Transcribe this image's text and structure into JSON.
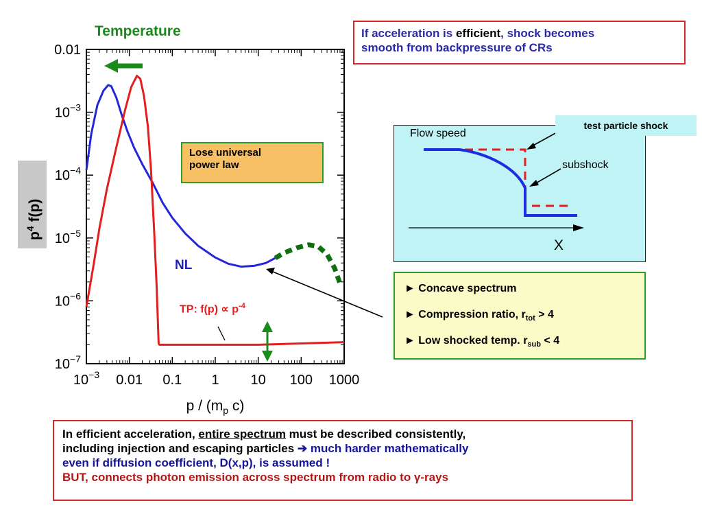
{
  "chart_data": {
    "type": "line",
    "title": "Temperature",
    "xlabel": "p / (m_p c)",
    "ylabel": "p^4 f(p)",
    "xscale": "log",
    "yscale": "log",
    "xlim": [
      0.001,
      1000
    ],
    "ylim": [
      1e-07,
      0.01
    ],
    "x_ticks": [
      {
        "v": 0.001,
        "base": "10",
        "exp": "−3"
      },
      {
        "v": 0.01,
        "base": "0.01",
        "exp": ""
      },
      {
        "v": 0.1,
        "base": "0.1",
        "exp": ""
      },
      {
        "v": 1,
        "base": "1",
        "exp": ""
      },
      {
        "v": 10,
        "base": "10",
        "exp": ""
      },
      {
        "v": 100,
        "base": "100",
        "exp": ""
      },
      {
        "v": 1000,
        "base": "1000",
        "exp": ""
      }
    ],
    "y_ticks": [
      {
        "v": 0.01,
        "base": "0.01",
        "exp": ""
      },
      {
        "v": 0.001,
        "base": "10",
        "exp": "−3"
      },
      {
        "v": 0.0001,
        "base": "10",
        "exp": "−4"
      },
      {
        "v": 1e-05,
        "base": "10",
        "exp": "−5"
      },
      {
        "v": 1e-06,
        "base": "10",
        "exp": "−6"
      },
      {
        "v": 1e-07,
        "base": "10",
        "exp": "−7"
      }
    ],
    "series": [
      {
        "name": "NL",
        "color": "#2626d9",
        "style": "solid",
        "points": [
          [
            0.001,
            0.00012
          ],
          [
            0.0013,
            0.00045
          ],
          [
            0.0018,
            0.0013
          ],
          [
            0.0025,
            0.0022
          ],
          [
            0.0032,
            0.0027
          ],
          [
            0.0038,
            0.0026
          ],
          [
            0.005,
            0.0017
          ],
          [
            0.0065,
            0.00095
          ],
          [
            0.009,
            0.0005
          ],
          [
            0.013,
            0.00027
          ],
          [
            0.02,
            0.00015
          ],
          [
            0.035,
            7.5e-05
          ],
          [
            0.06,
            3.6e-05
          ],
          [
            0.1,
            2.1e-05
          ],
          [
            0.2,
            1.18e-05
          ],
          [
            0.4,
            7.5e-06
          ],
          [
            1,
            4.9e-06
          ],
          [
            2,
            3.9e-06
          ],
          [
            4,
            3.5e-06
          ],
          [
            8,
            3.6e-06
          ],
          [
            15,
            4e-06
          ],
          [
            25,
            4.8e-06
          ]
        ]
      },
      {
        "name": "NL extension",
        "color": "#107010",
        "style": "dashed",
        "points": [
          [
            25,
            4.8e-06
          ],
          [
            40,
            5.8e-06
          ],
          [
            80,
            7e-06
          ],
          [
            150,
            7.8e-06
          ],
          [
            250,
            7.3e-06
          ],
          [
            400,
            5.5e-06
          ],
          [
            600,
            3.3e-06
          ],
          [
            800,
            1.9e-06
          ]
        ]
      },
      {
        "name": "TP",
        "color": "#e21e1e",
        "style": "solid",
        "points": [
          [
            0.001,
            8e-07
          ],
          [
            0.0015,
            4e-06
          ],
          [
            0.002,
            1.4e-05
          ],
          [
            0.003,
            6e-05
          ],
          [
            0.005,
            0.00028
          ],
          [
            0.008,
            0.0011
          ],
          [
            0.011,
            0.0025
          ],
          [
            0.015,
            0.0038
          ],
          [
            0.018,
            0.0034
          ],
          [
            0.022,
            0.0018
          ],
          [
            0.027,
            0.0006
          ],
          [
            0.032,
            0.00012
          ],
          [
            0.038,
            1.2e-05
          ],
          [
            0.043,
            1.8e-06
          ],
          [
            0.048,
            2.1e-07
          ],
          [
            0.05,
            2e-07
          ],
          [
            1,
            2e-07
          ],
          [
            10,
            2e-07
          ],
          [
            100,
            2.1e-07
          ],
          [
            1000,
            2.2e-07
          ]
        ]
      }
    ],
    "annotations": {
      "nl_label": "NL",
      "tp_label_prefix": "TP: f(p) ∝ p",
      "tp_label_exp": "-4",
      "lose_box_line1": "Lose universal",
      "lose_box_line2": "power law"
    }
  },
  "top_box": {
    "part1": "If acceleration is ",
    "part2": "efficient",
    "part3": ", shock becomes",
    "line2": "smooth from backpressure of CRs"
  },
  "shock_panel": {
    "flow_speed": "Flow speed",
    "subshock": "subshock",
    "x_axis": "X",
    "test_particle_shock": "test particle shock"
  },
  "bullets": {
    "b1": "► Concave spectrum",
    "b2_pre": "► Compression ratio, r",
    "b2_sub": "tot",
    "b2_post": " > 4",
    "b3_pre": "► Low shocked temp. r",
    "b3_sub": "sub",
    "b3_post": " < 4"
  },
  "bottom_box": {
    "l1_pre": "In efficient acceleration, ",
    "l1_u": "entire spectrum",
    "l1_post": " must be described consistently,",
    "l2_pre": "including injection and escaping particles ",
    "l2_arrow": "➔",
    "l2_blue": " much harder mathematically",
    "l3": "even if diffusion coefficient, D(x,p), is assumed !",
    "l4_pre": "BUT, connects photon emission across spectrum from radio to ",
    "l4_gamma": "γ",
    "l4_post": "-rays"
  },
  "colors": {
    "nl": "#2626d9",
    "tp": "#e21e1e",
    "green": "#1a8a1a",
    "box_red": "#d62828"
  }
}
